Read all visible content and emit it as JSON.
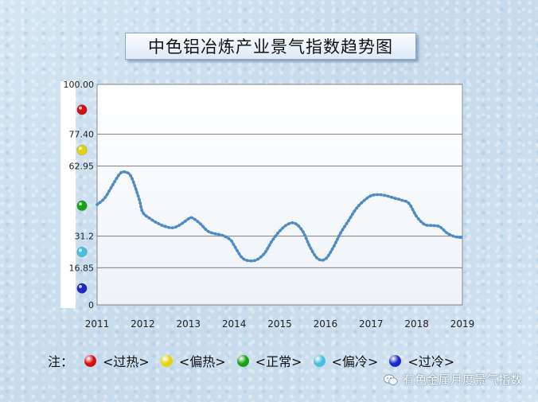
{
  "chart_data": {
    "type": "line",
    "title": "中色铝冶炼产业景气指数趋势图",
    "xlabel": "",
    "ylabel": "",
    "x_tick_labels": [
      "2011",
      "2012",
      "2013",
      "2014",
      "2015",
      "2016",
      "2017",
      "2018",
      "2019"
    ],
    "y_ticks": [
      {
        "value": 0,
        "label": "0"
      },
      {
        "value": 16.85,
        "label": "16.85"
      },
      {
        "value": 31.2,
        "label": "31.2"
      },
      {
        "value": 62.95,
        "label": "62.95"
      },
      {
        "value": 77.4,
        "label": "77.40"
      },
      {
        "value": 100,
        "label": "100.00"
      }
    ],
    "ylim": [
      0,
      100
    ],
    "xlim": [
      2011,
      2019
    ],
    "grid": true,
    "legend_position": "bottom",
    "series": [
      {
        "color": "#5b95c9",
        "points": [
          [
            2011.0,
            45.5
          ],
          [
            2011.17,
            48.5
          ],
          [
            2011.33,
            54.0
          ],
          [
            2011.5,
            59.5
          ],
          [
            2011.62,
            60.2
          ],
          [
            2011.75,
            58.0
          ],
          [
            2011.92,
            48.0
          ],
          [
            2012.0,
            42.0
          ],
          [
            2012.17,
            39.0
          ],
          [
            2012.33,
            37.0
          ],
          [
            2012.5,
            35.5
          ],
          [
            2012.67,
            35.0
          ],
          [
            2012.83,
            36.5
          ],
          [
            2013.0,
            39.0
          ],
          [
            2013.08,
            39.5
          ],
          [
            2013.25,
            37.0
          ],
          [
            2013.42,
            33.5
          ],
          [
            2013.58,
            32.3
          ],
          [
            2013.75,
            31.5
          ],
          [
            2013.92,
            29.5
          ],
          [
            2014.0,
            27.0
          ],
          [
            2014.17,
            21.5
          ],
          [
            2014.33,
            20.0
          ],
          [
            2014.5,
            20.5
          ],
          [
            2014.67,
            23.5
          ],
          [
            2014.83,
            29.0
          ],
          [
            2015.0,
            33.5
          ],
          [
            2015.17,
            36.5
          ],
          [
            2015.33,
            37.0
          ],
          [
            2015.5,
            33.5
          ],
          [
            2015.67,
            26.0
          ],
          [
            2015.83,
            21.0
          ],
          [
            2016.0,
            20.8
          ],
          [
            2016.17,
            26.0
          ],
          [
            2016.33,
            32.5
          ],
          [
            2016.5,
            38.0
          ],
          [
            2016.67,
            43.5
          ],
          [
            2016.83,
            47.0
          ],
          [
            2017.0,
            49.5
          ],
          [
            2017.17,
            50.0
          ],
          [
            2017.33,
            49.5
          ],
          [
            2017.5,
            48.5
          ],
          [
            2017.67,
            47.5
          ],
          [
            2017.83,
            46.0
          ],
          [
            2018.0,
            40.0
          ],
          [
            2018.17,
            36.5
          ],
          [
            2018.33,
            36.0
          ],
          [
            2018.5,
            35.5
          ],
          [
            2018.67,
            32.5
          ],
          [
            2018.83,
            31.0
          ],
          [
            2019.0,
            30.5
          ]
        ]
      }
    ]
  },
  "legend": {
    "prefix": "注：",
    "items": [
      {
        "label": "<过热>",
        "color": "#d41010"
      },
      {
        "label": "<偏热>",
        "color": "#e4d40e"
      },
      {
        "label": "<正常>",
        "color": "#17a117"
      },
      {
        "label": "<偏冷>",
        "color": "#47bfe0"
      },
      {
        "label": "<过冷>",
        "color": "#1c2bc4"
      }
    ]
  },
  "zone_markers": [
    {
      "value": 88.5,
      "color": "#d41010"
    },
    {
      "value": 70.2,
      "color": "#e4d40e"
    },
    {
      "value": 45.0,
      "color": "#17a117"
    },
    {
      "value": 24.0,
      "color": "#47bfe0"
    },
    {
      "value": 7.5,
      "color": "#1c2bc4"
    }
  ],
  "watermark": {
    "text": "有色金属月度景气指数",
    "icon": "wechat-icon"
  }
}
